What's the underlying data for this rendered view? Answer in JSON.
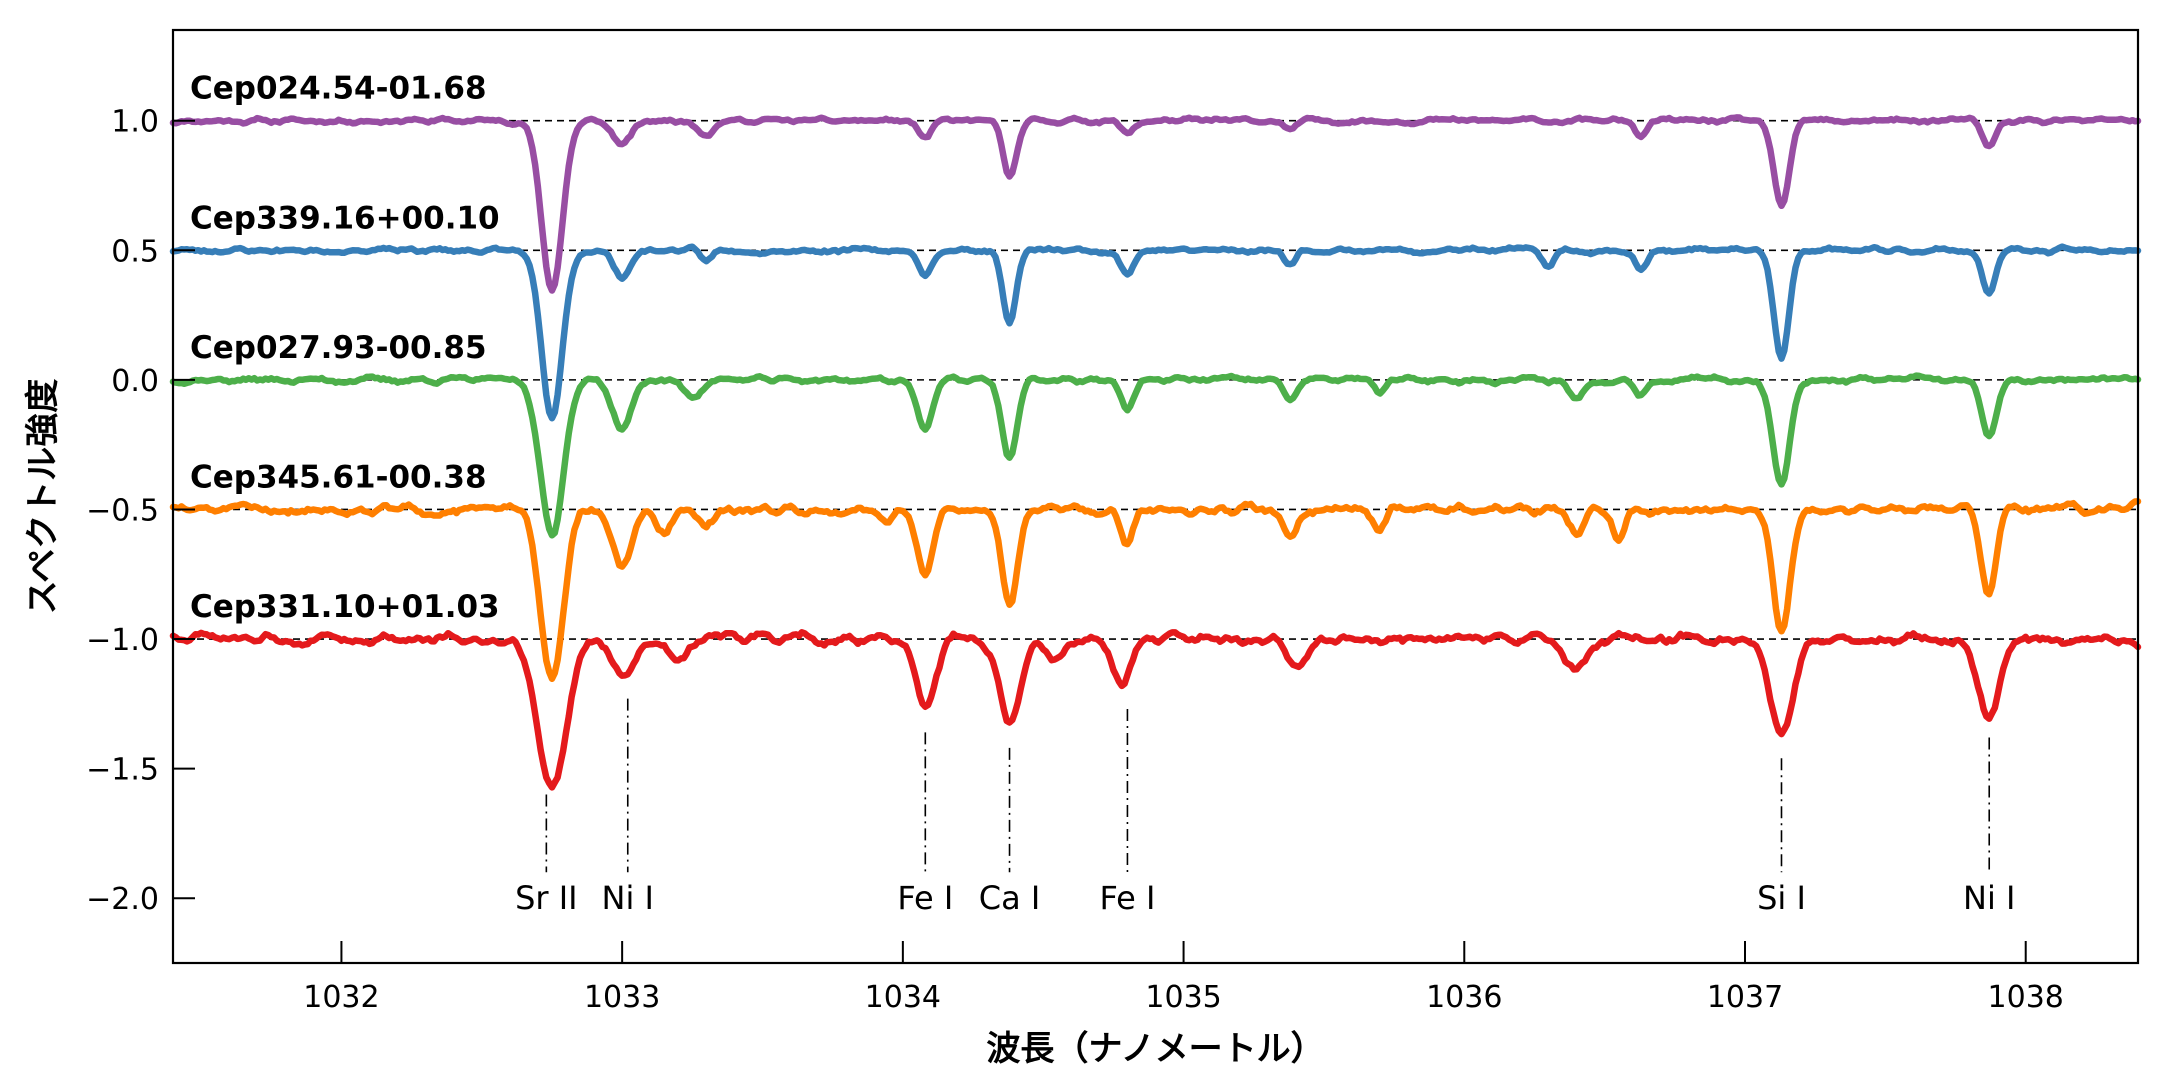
{
  "chart_data": {
    "type": "line",
    "title": "",
    "xlabel": "波長（ナノメートル）",
    "ylabel": "スペクトル強度",
    "xlim": [
      1031.4,
      1038.4
    ],
    "ylim": [
      -2.25,
      1.35
    ],
    "xticks": [
      1032,
      1033,
      1034,
      1035,
      1036,
      1037,
      1038
    ],
    "xtick_labels": [
      "1032",
      "1033",
      "1034",
      "1035",
      "1036",
      "1037",
      "1038"
    ],
    "yticks": [
      1.0,
      0.5,
      0.0,
      -0.5,
      -1.0,
      -1.5,
      -2.0
    ],
    "ytick_labels": [
      "1.0",
      "0.5",
      "0.0",
      "−0.5",
      "−1.0",
      "−1.5",
      "−2.0"
    ],
    "grid": false,
    "series": [
      {
        "name": "Cep024.54-01.68",
        "offset": 1.0,
        "color": "#984ea3",
        "noise": 0.012,
        "noise_seed": 11,
        "lines": [
          [
            1032.75,
            0.65,
            0.055
          ],
          [
            1033.0,
            0.09,
            0.05
          ],
          [
            1033.3,
            0.05,
            0.04
          ],
          [
            1034.08,
            0.07,
            0.035
          ],
          [
            1034.38,
            0.22,
            0.035
          ],
          [
            1034.8,
            0.05,
            0.035
          ],
          [
            1035.38,
            0.04,
            0.03
          ],
          [
            1036.63,
            0.06,
            0.03
          ],
          [
            1037.13,
            0.34,
            0.04
          ],
          [
            1037.87,
            0.1,
            0.035
          ]
        ]
      },
      {
        "name": "Cep339.16+00.10",
        "offset": 0.5,
        "color": "#377eb8",
        "noise": 0.012,
        "noise_seed": 23,
        "lines": [
          [
            1032.75,
            0.65,
            0.055
          ],
          [
            1033.0,
            0.1,
            0.045
          ],
          [
            1033.3,
            0.04,
            0.03
          ],
          [
            1034.08,
            0.1,
            0.035
          ],
          [
            1034.38,
            0.28,
            0.035
          ],
          [
            1034.8,
            0.09,
            0.035
          ],
          [
            1035.38,
            0.05,
            0.03
          ],
          [
            1036.3,
            0.06,
            0.03
          ],
          [
            1036.63,
            0.08,
            0.03
          ],
          [
            1037.13,
            0.42,
            0.04
          ],
          [
            1037.87,
            0.17,
            0.035
          ]
        ]
      },
      {
        "name": "Cep027.93-00.85",
        "offset": 0.0,
        "color": "#4daf4a",
        "noise": 0.014,
        "noise_seed": 37,
        "lines": [
          [
            1032.75,
            0.6,
            0.06
          ],
          [
            1033.0,
            0.19,
            0.05
          ],
          [
            1033.25,
            0.06,
            0.05
          ],
          [
            1034.08,
            0.19,
            0.04
          ],
          [
            1034.38,
            0.3,
            0.04
          ],
          [
            1034.8,
            0.11,
            0.035
          ],
          [
            1035.38,
            0.07,
            0.035
          ],
          [
            1035.7,
            0.05,
            0.03
          ],
          [
            1036.4,
            0.07,
            0.04
          ],
          [
            1036.63,
            0.05,
            0.03
          ],
          [
            1037.13,
            0.4,
            0.045
          ],
          [
            1037.87,
            0.23,
            0.04
          ]
        ]
      },
      {
        "name": "Cep345.61-00.38",
        "offset": -0.5,
        "color": "#ff7f00",
        "noise": 0.022,
        "noise_seed": 51,
        "lines": [
          [
            1032.75,
            0.65,
            0.06
          ],
          [
            1033.0,
            0.22,
            0.05
          ],
          [
            1033.15,
            0.1,
            0.04
          ],
          [
            1033.3,
            0.07,
            0.04
          ],
          [
            1033.95,
            0.05,
            0.035
          ],
          [
            1034.08,
            0.26,
            0.04
          ],
          [
            1034.38,
            0.37,
            0.04
          ],
          [
            1034.8,
            0.13,
            0.035
          ],
          [
            1035.38,
            0.1,
            0.035
          ],
          [
            1035.7,
            0.08,
            0.03
          ],
          [
            1036.4,
            0.1,
            0.04
          ],
          [
            1036.55,
            0.12,
            0.03
          ],
          [
            1037.13,
            0.47,
            0.045
          ],
          [
            1037.87,
            0.32,
            0.04
          ]
        ]
      },
      {
        "name": "Cep331.10+01.03",
        "offset": -1.0,
        "color": "#e41a1c",
        "noise": 0.025,
        "noise_seed": 73,
        "lines": [
          [
            1032.75,
            0.57,
            0.075
          ],
          [
            1033.0,
            0.14,
            0.06
          ],
          [
            1033.2,
            0.08,
            0.05
          ],
          [
            1034.08,
            0.27,
            0.05
          ],
          [
            1034.38,
            0.33,
            0.055
          ],
          [
            1034.55,
            0.08,
            0.05
          ],
          [
            1034.78,
            0.17,
            0.05
          ],
          [
            1035.4,
            0.1,
            0.05
          ],
          [
            1036.4,
            0.12,
            0.06
          ],
          [
            1037.13,
            0.38,
            0.06
          ],
          [
            1037.87,
            0.29,
            0.055
          ]
        ]
      }
    ],
    "line_markers": [
      {
        "label": "Sr II",
        "x": 1032.73
      },
      {
        "label": "Ni I",
        "x": 1033.02
      },
      {
        "label": "Fe I",
        "x": 1034.08
      },
      {
        "label": "Ca I",
        "x": 1034.38
      },
      {
        "label": "Fe I",
        "x": 1034.8
      },
      {
        "label": "Si I",
        "x": 1037.13
      },
      {
        "label": "Ni I",
        "x": 1037.87
      }
    ]
  }
}
